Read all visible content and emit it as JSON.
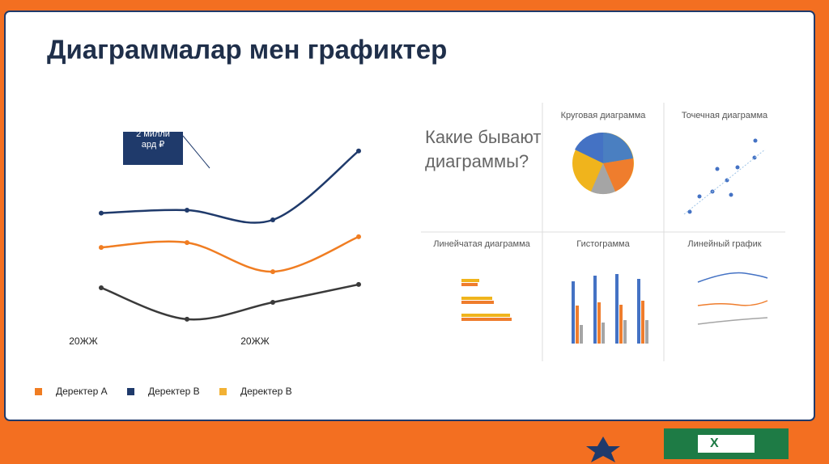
{
  "title": "Диаграммалар мен графиктер",
  "chart_data": {
    "type": "line",
    "categories": [
      "20ЖЖ",
      null,
      "20ЖЖ",
      null
    ],
    "ylim": [
      0,
      100
    ],
    "annotation": "2 миллиард ₽",
    "series": [
      {
        "name": "Деректер А",
        "color": "#f07d22",
        "legend_color": "#f07d22",
        "values": [
          43.3,
          45.8,
          30.8,
          48.8
        ]
      },
      {
        "name": "Деректер В",
        "color": "#1f3a6b",
        "legend_color": "#1f3a6b",
        "values": [
          61,
          62.5,
          57.5,
          93
        ]
      },
      {
        "name": "Деректер В",
        "color": "#3a3a3a",
        "legend_color": "#f2b134",
        "values": [
          22.5,
          6.3,
          15,
          24.2
        ]
      }
    ]
  },
  "image": {
    "question": "Какие бывают диаграммы?",
    "panels": [
      "Круговая диаграмма",
      "Точечная диаграмма",
      "Линейчатая диаграмма",
      "Гистограмма",
      "Линейный график"
    ]
  }
}
